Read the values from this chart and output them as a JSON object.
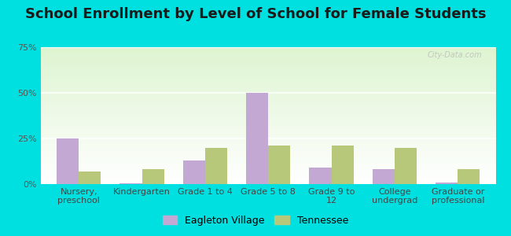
{
  "title": "School Enrollment by Level of School for Female Students",
  "categories": [
    "Nursery,\npreschool",
    "Kindergarten",
    "Grade 1 to 4",
    "Grade 5 to 8",
    "Grade 9 to\n12",
    "College\nundergrad",
    "Graduate or\nprofessional"
  ],
  "eagleton_values": [
    25,
    0.5,
    13,
    50,
    9,
    8,
    1
  ],
  "tennessee_values": [
    7,
    8,
    20,
    21,
    21,
    20,
    8
  ],
  "eagleton_color": "#c4a8d4",
  "tennessee_color": "#b8c87a",
  "background_color": "#00e0e0",
  "ylim": [
    0,
    75
  ],
  "yticks": [
    0,
    25,
    50,
    75
  ],
  "ytick_labels": [
    "0%",
    "25%",
    "50%",
    "75%"
  ],
  "legend_labels": [
    "Eagleton Village",
    "Tennessee"
  ],
  "title_fontsize": 13,
  "tick_fontsize": 8,
  "legend_fontsize": 9,
  "bar_width": 0.35
}
